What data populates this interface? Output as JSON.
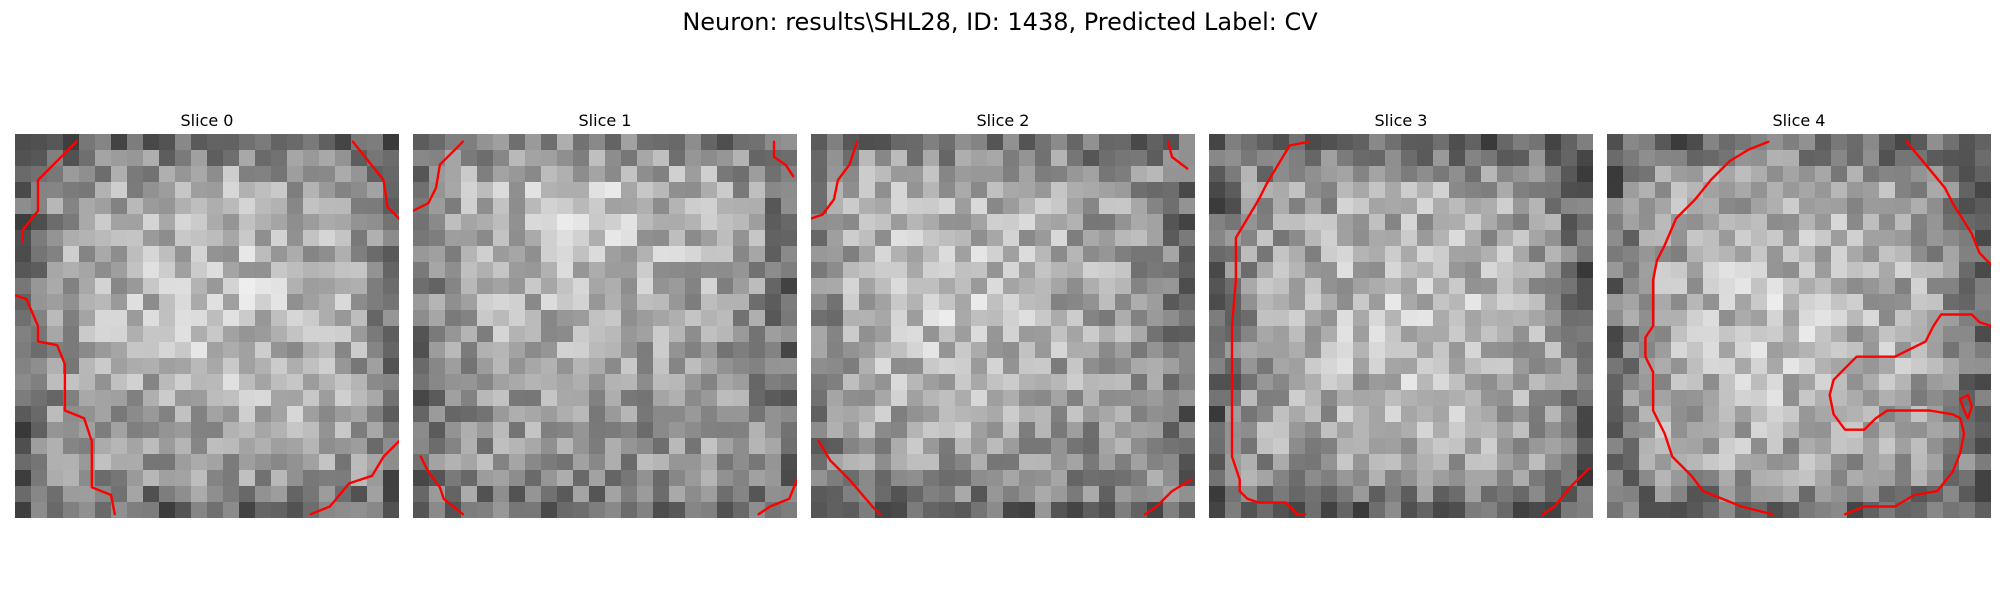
{
  "figure": {
    "title": "Neuron: results\\SHL28, ID: 1438, Predicted Label: CV",
    "panels": [
      {
        "title": "Slice 0",
        "seed": 11,
        "darken_edges": 0.55,
        "bright_center": [
          0.55,
          0.45
        ],
        "contours": [
          [
            [
              0.16,
              0.02
            ],
            [
              0.1,
              0.08
            ],
            [
              0.06,
              0.12
            ],
            [
              0.06,
              0.2
            ],
            [
              0.02,
              0.25
            ],
            [
              0.02,
              0.28
            ]
          ],
          [
            [
              0.88,
              0.02
            ],
            [
              0.96,
              0.12
            ],
            [
              0.97,
              0.19
            ],
            [
              1.0,
              0.22
            ]
          ],
          [
            [
              0.0,
              0.42
            ],
            [
              0.03,
              0.43
            ],
            [
              0.06,
              0.5
            ],
            [
              0.06,
              0.54
            ],
            [
              0.11,
              0.55
            ],
            [
              0.13,
              0.6
            ],
            [
              0.13,
              0.72
            ],
            [
              0.18,
              0.74
            ],
            [
              0.2,
              0.8
            ],
            [
              0.2,
              0.92
            ],
            [
              0.25,
              0.94
            ],
            [
              0.26,
              0.99
            ]
          ],
          [
            [
              1.0,
              0.8
            ],
            [
              0.96,
              0.84
            ],
            [
              0.93,
              0.89
            ],
            [
              0.87,
              0.91
            ],
            [
              0.82,
              0.97
            ],
            [
              0.77,
              0.99
            ]
          ]
        ]
      },
      {
        "title": "Slice 1",
        "seed": 23,
        "darken_edges": 0.45,
        "bright_center": [
          0.45,
          0.25
        ],
        "contours": [
          [
            [
              0.13,
              0.02
            ],
            [
              0.07,
              0.08
            ],
            [
              0.06,
              0.14
            ],
            [
              0.04,
              0.18
            ],
            [
              0.0,
              0.2
            ]
          ],
          [
            [
              0.94,
              0.02
            ],
            [
              0.94,
              0.06
            ],
            [
              0.97,
              0.08
            ],
            [
              0.99,
              0.11
            ]
          ],
          [
            [
              0.02,
              0.84
            ],
            [
              0.04,
              0.88
            ],
            [
              0.07,
              0.92
            ],
            [
              0.08,
              0.95
            ],
            [
              0.13,
              0.99
            ]
          ],
          [
            [
              1.0,
              0.9
            ],
            [
              0.98,
              0.95
            ],
            [
              0.93,
              0.97
            ],
            [
              0.9,
              0.99
            ]
          ]
        ]
      },
      {
        "title": "Slice 2",
        "seed": 37,
        "darken_edges": 0.45,
        "bright_center": [
          0.35,
          0.4
        ],
        "contours": [
          [
            [
              0.12,
              0.02
            ],
            [
              0.1,
              0.08
            ],
            [
              0.07,
              0.12
            ],
            [
              0.06,
              0.17
            ],
            [
              0.03,
              0.21
            ],
            [
              0.0,
              0.22
            ]
          ],
          [
            [
              0.93,
              0.02
            ],
            [
              0.94,
              0.06
            ],
            [
              0.98,
              0.09
            ]
          ],
          [
            [
              0.02,
              0.8
            ],
            [
              0.05,
              0.85
            ],
            [
              0.1,
              0.9
            ],
            [
              0.16,
              0.97
            ],
            [
              0.18,
              0.99
            ]
          ],
          [
            [
              0.99,
              0.9
            ],
            [
              0.94,
              0.93
            ],
            [
              0.9,
              0.97
            ],
            [
              0.87,
              0.99
            ]
          ]
        ]
      },
      {
        "title": "Slice 3",
        "seed": 51,
        "darken_edges": 0.65,
        "bright_center": [
          0.55,
          0.5
        ],
        "contours": [
          [
            [
              0.26,
              0.02
            ],
            [
              0.21,
              0.03
            ],
            [
              0.18,
              0.08
            ],
            [
              0.15,
              0.13
            ],
            [
              0.13,
              0.17
            ],
            [
              0.1,
              0.22
            ],
            [
              0.07,
              0.27
            ],
            [
              0.07,
              0.38
            ],
            [
              0.06,
              0.5
            ],
            [
              0.06,
              0.84
            ],
            [
              0.08,
              0.9
            ],
            [
              0.08,
              0.93
            ],
            [
              0.1,
              0.95
            ],
            [
              0.13,
              0.96
            ],
            [
              0.2,
              0.96
            ],
            [
              0.23,
              0.99
            ],
            [
              0.25,
              0.99
            ]
          ],
          [
            [
              0.99,
              0.87
            ],
            [
              0.94,
              0.92
            ],
            [
              0.9,
              0.97
            ],
            [
              0.87,
              0.99
            ]
          ]
        ]
      },
      {
        "title": "Slice 4",
        "seed": 73,
        "darken_edges": 0.55,
        "bright_center": [
          0.45,
          0.5
        ],
        "contours": [
          [
            [
              0.42,
              0.02
            ],
            [
              0.37,
              0.04
            ],
            [
              0.32,
              0.07
            ],
            [
              0.27,
              0.12
            ],
            [
              0.23,
              0.17
            ],
            [
              0.18,
              0.22
            ],
            [
              0.15,
              0.29
            ],
            [
              0.13,
              0.33
            ],
            [
              0.12,
              0.38
            ],
            [
              0.12,
              0.5
            ],
            [
              0.1,
              0.53
            ],
            [
              0.1,
              0.58
            ],
            [
              0.12,
              0.62
            ],
            [
              0.12,
              0.72
            ],
            [
              0.15,
              0.78
            ],
            [
              0.17,
              0.84
            ],
            [
              0.22,
              0.89
            ],
            [
              0.25,
              0.93
            ],
            [
              0.3,
              0.95
            ],
            [
              0.35,
              0.97
            ],
            [
              0.43,
              0.99
            ]
          ],
          [
            [
              0.78,
              0.02
            ],
            [
              0.83,
              0.08
            ],
            [
              0.88,
              0.14
            ],
            [
              0.9,
              0.18
            ],
            [
              0.95,
              0.26
            ],
            [
              0.97,
              0.31
            ],
            [
              1.0,
              0.34
            ]
          ],
          [
            [
              0.62,
              0.99
            ],
            [
              0.67,
              0.97
            ],
            [
              0.75,
              0.97
            ],
            [
              0.8,
              0.94
            ],
            [
              0.86,
              0.93
            ],
            [
              0.9,
              0.88
            ],
            [
              0.92,
              0.83
            ],
            [
              0.93,
              0.78
            ],
            [
              0.92,
              0.74
            ],
            [
              0.9,
              0.73
            ],
            [
              0.84,
              0.72
            ],
            [
              0.73,
              0.72
            ],
            [
              0.7,
              0.74
            ],
            [
              0.67,
              0.77
            ],
            [
              0.62,
              0.77
            ],
            [
              0.59,
              0.73
            ],
            [
              0.58,
              0.68
            ],
            [
              0.59,
              0.64
            ],
            [
              0.62,
              0.61
            ],
            [
              0.65,
              0.58
            ],
            [
              0.75,
              0.58
            ],
            [
              0.79,
              0.56
            ],
            [
              0.83,
              0.54
            ],
            [
              0.85,
              0.5
            ],
            [
              0.87,
              0.47
            ],
            [
              0.95,
              0.47
            ],
            [
              0.97,
              0.49
            ],
            [
              1.0,
              0.5
            ]
          ],
          [
            [
              0.94,
              0.68
            ],
            [
              0.95,
              0.71
            ],
            [
              0.94,
              0.74
            ],
            [
              0.93,
              0.72
            ],
            [
              0.92,
              0.69
            ],
            [
              0.94,
              0.68
            ]
          ]
        ]
      }
    ]
  }
}
